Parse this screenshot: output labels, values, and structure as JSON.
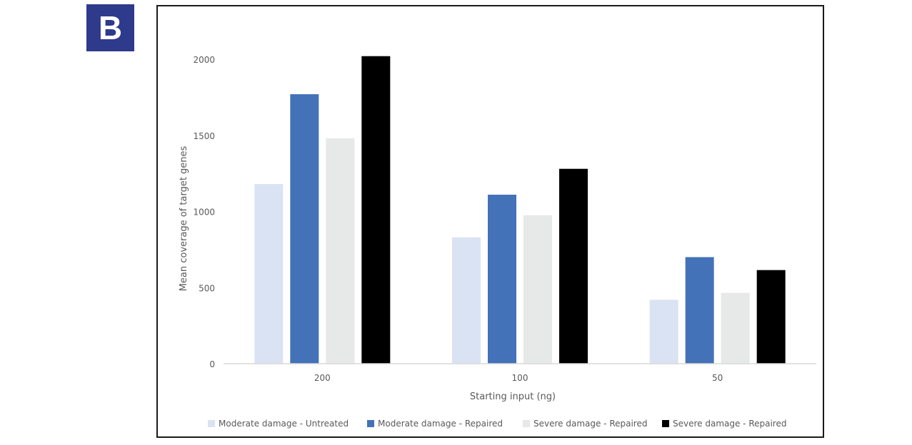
{
  "panel_label": "B",
  "chart_data": {
    "type": "bar",
    "title": "",
    "xlabel": "Starting input (ng)",
    "ylabel": "Mean coverage of target genes",
    "categories": [
      "200",
      "100",
      "50"
    ],
    "ylim": [
      0,
      2000
    ],
    "yticks": [
      0,
      500,
      1000,
      1500,
      2000
    ],
    "grid": false,
    "legend_position": "bottom",
    "series": [
      {
        "name": "Moderate damage - Untreated",
        "color": "#dae3f3",
        "values": [
          1180,
          830,
          420
        ]
      },
      {
        "name": "Moderate damage - Repaired",
        "color": "#4472b8",
        "values": [
          1770,
          1110,
          700
        ]
      },
      {
        "name": "Severe damage - Repaired",
        "color": "#e7e8e8",
        "values": [
          1480,
          975,
          465
        ]
      },
      {
        "name": "Severe damage - Repaired",
        "color": "#000000",
        "values": [
          2020,
          1280,
          615
        ]
      }
    ]
  }
}
